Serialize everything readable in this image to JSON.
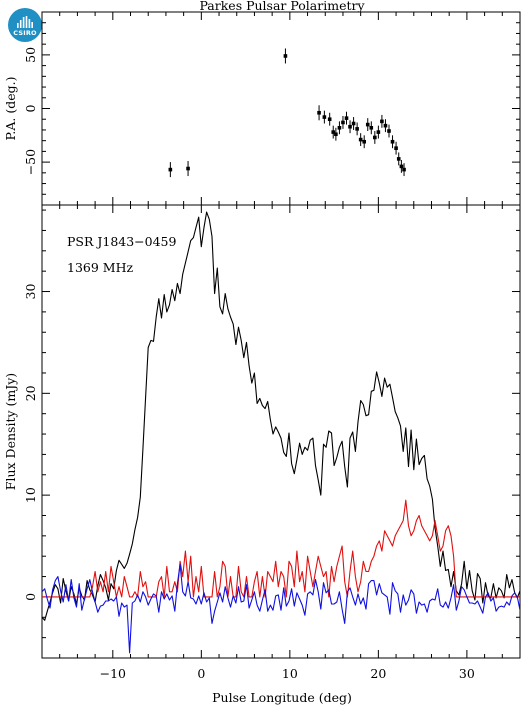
{
  "logo": {
    "text": "CSIRO",
    "color": "#1f8fc4"
  },
  "title": "Parkes Pulsar Polarimetry",
  "xlabel": "Pulse Longitude (deg)",
  "annotations": [
    "PSR J1843−0459",
    "1369 MHz"
  ],
  "chart_data": [
    {
      "type": "scatter",
      "title": "Parkes Pulsar Polarimetry",
      "ylabel": "P.A. (deg.)",
      "xlim": [
        -18,
        36
      ],
      "ylim": [
        -90,
        90
      ],
      "x_ticks": [
        -10,
        0,
        10,
        20,
        30
      ],
      "y_ticks": [
        -50,
        0,
        50
      ],
      "color": "#000000",
      "points": [
        {
          "x": -3.5,
          "y": -57,
          "err": 7
        },
        {
          "x": -1.5,
          "y": -56,
          "err": 7
        },
        {
          "x": 9.5,
          "y": 49,
          "err": 7
        },
        {
          "x": 13.3,
          "y": -4,
          "err": 7
        },
        {
          "x": 13.9,
          "y": -8,
          "err": 6
        },
        {
          "x": 14.5,
          "y": -10,
          "err": 6
        },
        {
          "x": 14.9,
          "y": -22,
          "err": 6
        },
        {
          "x": 15.2,
          "y": -24,
          "err": 6
        },
        {
          "x": 15.6,
          "y": -18,
          "err": 6
        },
        {
          "x": 16.0,
          "y": -13,
          "err": 6
        },
        {
          "x": 16.4,
          "y": -9,
          "err": 6
        },
        {
          "x": 16.8,
          "y": -17,
          "err": 6
        },
        {
          "x": 17.2,
          "y": -14,
          "err": 6
        },
        {
          "x": 17.6,
          "y": -19,
          "err": 6
        },
        {
          "x": 18.0,
          "y": -29,
          "err": 6
        },
        {
          "x": 18.4,
          "y": -31,
          "err": 6
        },
        {
          "x": 18.8,
          "y": -15,
          "err": 6
        },
        {
          "x": 19.2,
          "y": -18,
          "err": 6
        },
        {
          "x": 19.6,
          "y": -27,
          "err": 6
        },
        {
          "x": 20.0,
          "y": -22,
          "err": 6
        },
        {
          "x": 20.4,
          "y": -12,
          "err": 6
        },
        {
          "x": 20.8,
          "y": -16,
          "err": 6
        },
        {
          "x": 21.2,
          "y": -21,
          "err": 6
        },
        {
          "x": 21.6,
          "y": -31,
          "err": 6
        },
        {
          "x": 22.0,
          "y": -37,
          "err": 6
        },
        {
          "x": 22.3,
          "y": -47,
          "err": 6
        },
        {
          "x": 22.6,
          "y": -54,
          "err": 6
        },
        {
          "x": 22.9,
          "y": -57,
          "err": 6
        }
      ]
    },
    {
      "type": "line",
      "ylabel": "Flux Density (mJy)",
      "xlim": [
        -18,
        36
      ],
      "ylim": [
        -6,
        38.5
      ],
      "x_ticks": [
        -10,
        0,
        10,
        20,
        30
      ],
      "y_ticks": [
        0,
        10,
        20,
        30
      ],
      "step": 0.3,
      "series": [
        {
          "color": "#000000",
          "values": [
            -2,
            -2.3,
            -1.4,
            -0.5,
            0.4,
            1.2,
            0.8,
            -0.6,
            1.8,
            0.6,
            -0.4,
            1,
            0.3,
            -0.7,
            0.9,
            0.1,
            -0.3,
            1.6,
            0.7,
            0.2,
            -0.5,
            1.1,
            2.2,
            1.6,
            0.9,
            -0.3,
            1.3,
            0.8,
            2.6,
            3.6,
            3.2,
            2.8,
            3.3,
            4.2,
            5.2,
            6.6,
            7.8,
            9.8,
            14.5,
            19.6,
            24.5,
            25.2,
            25.1,
            27.5,
            29.3,
            27.4,
            29.7,
            28,
            28.7,
            30.2,
            29.1,
            30.8,
            29.8,
            31.7,
            32.8,
            33.9,
            35,
            35.3,
            36.3,
            37.3,
            34.4,
            36.3,
            37.8,
            37.1,
            35.4,
            29.8,
            32.3,
            28.5,
            27.8,
            29.8,
            28.3,
            27.5,
            26.8,
            24.8,
            26.5,
            25.2,
            23.5,
            25,
            22.7,
            21,
            22,
            19,
            19.5,
            18.8,
            18.5,
            19.2,
            17.4,
            16,
            16.7,
            16.2,
            15.6,
            14.2,
            13.8,
            16.1,
            13.1,
            12.1,
            13.5,
            15.1,
            14,
            14.7,
            14.4,
            15.4,
            15.6,
            12.9,
            11.5,
            10,
            15,
            14.7,
            16.3,
            16.1,
            12.9,
            13.7,
            14.7,
            15.3,
            12.8,
            10.8,
            15.6,
            16.2,
            14.3,
            17.2,
            19.3,
            18.9,
            17.8,
            17.9,
            20.2,
            20.3,
            22.1,
            21,
            19.7,
            21.5,
            20.6,
            20.9,
            19.6,
            18.2,
            17.6,
            16.8,
            14.3,
            16.6,
            12.8,
            16.4,
            12.5,
            15.5,
            13,
            13.6,
            13.9,
            11.6,
            10.9,
            9.6,
            6.8,
            5,
            3,
            4.5,
            2.6,
            2.7,
            1,
            2.5,
            0.6,
            0.2,
            1.3,
            3.5,
            0.8,
            2.6,
            0.6,
            -0.3,
            2.3,
            1.8,
            -0.6,
            1.4,
            0.1,
            -0.1,
            1.3,
            -0.1,
            0.9,
            0.6,
            -0.1,
            2.2,
            0.9,
            1.7,
            0.4,
            -0.1,
            0.6,
            -0.4,
            0.1
          ]
        },
        {
          "color": "#e01010",
          "values": [
            0,
            0,
            0,
            0,
            0,
            0,
            0,
            0,
            0,
            0,
            0,
            0,
            0,
            0,
            0,
            0,
            0,
            0,
            0,
            1,
            2.5,
            0.5,
            1.5,
            0.5,
            2.5,
            0.5,
            3,
            1.5,
            0,
            1,
            0,
            2,
            1,
            0,
            0,
            0.5,
            0,
            2.5,
            1,
            1.5,
            0,
            0,
            0,
            0,
            1.5,
            2,
            0,
            3,
            0.5,
            0.5,
            1.5,
            0.5,
            3.5,
            2,
            4.5,
            1.5,
            4,
            0,
            2,
            0.5,
            3,
            0,
            0,
            0,
            0,
            2.5,
            0,
            1,
            3.5,
            3,
            0,
            2,
            0,
            0,
            3,
            0.5,
            0,
            2,
            0,
            0,
            1.5,
            2.5,
            0,
            2,
            0,
            2.5,
            2,
            1.5,
            3.5,
            1,
            2.5,
            2,
            0,
            3.5,
            3,
            1,
            4.5,
            1.5,
            2.5,
            0.5,
            4,
            2.5,
            1,
            2.5,
            4,
            3,
            2,
            2.5,
            0,
            3,
            1.5,
            3,
            4,
            5,
            1.5,
            0,
            2.5,
            4.5,
            2,
            0.5,
            1.5,
            3.5,
            2.5,
            2.5,
            3.5,
            4,
            5,
            5.5,
            4.5,
            6.5,
            6,
            5.5,
            5,
            6,
            6.5,
            7,
            7.5,
            9.5,
            7,
            6,
            6.5,
            7.5,
            8,
            7,
            6.5,
            6,
            5.5,
            6,
            7.5,
            6,
            4.5,
            5,
            6.5,
            7,
            6,
            4,
            0,
            0,
            0,
            0,
            0,
            0,
            0,
            0,
            0,
            0,
            0,
            0,
            0,
            0,
            0,
            0,
            0,
            0,
            0,
            0,
            0,
            0,
            0,
            0,
            0,
            0,
            0,
            0,
            0,
            0
          ]
        },
        {
          "color": "#1010e0",
          "values": [
            0.5,
            0.8,
            -0.2,
            -1.1,
            0.7,
            1.6,
            2,
            0.6,
            -0.5,
            1.2,
            -0.4,
            1.7,
            -0.1,
            -1,
            1.3,
            -1.3,
            -0.2,
            0.8,
            1.7,
            0.5,
            -0.5,
            -1.5,
            -0.9,
            -0.8,
            -0.4,
            -0.4,
            -0.2,
            -0.4,
            0,
            -1.9,
            -0.6,
            -1,
            -0.8,
            -5.5,
            -0.6,
            -0.4,
            0.2,
            -0.5,
            0.5,
            0,
            -0.8,
            -0.2,
            0.3,
            0.1,
            -1.5,
            0.5,
            -0.2,
            0.3,
            -0.3,
            0.1,
            -1.4,
            1.3,
            3.2,
            0.5,
            0.1,
            1.5,
            -0.1,
            -0.2,
            -0.7,
            0.1,
            -0.7,
            0.4,
            -0.5,
            -0.1,
            -2.6,
            -1.4,
            -0.5,
            0.4,
            -0.5,
            1,
            -0.1,
            -1,
            0.1,
            -0.6,
            1,
            -0.5,
            -0.4,
            1.2,
            -1.1,
            -0.3,
            0.5,
            -0.8,
            -1.4,
            -0.3,
            0.7,
            -1.4,
            -0.8,
            -1.3,
            0.1,
            0.2,
            -1.3,
            0.9,
            -0.9,
            -0.4,
            0.8,
            -0.9,
            0.4,
            -0.2,
            -0.8,
            -1.8,
            0.3,
            0.5,
            0.2,
            1.7,
            0.5,
            -1.2,
            1.4,
            0.4,
            0.7,
            -0.7,
            -0.7,
            -0.5,
            0.5,
            -1.2,
            -2.6,
            0.5,
            0.9,
            0,
            -0.8,
            0.3,
            -0.7,
            -0.1,
            -1.2,
            1.3,
            1.6,
            1.6,
            0.2,
            1.3,
            0.4,
            0.2,
            0,
            -1.7,
            1.4,
            0.6,
            0.3,
            -1.5,
            0.2,
            -0.8,
            -0.3,
            0.7,
            0.3,
            -1.6,
            -0.5,
            -0.8,
            -0.7,
            -1.5,
            -0.4,
            -0.2,
            -0.3,
            0.8,
            -0.8,
            -1,
            -0.5,
            -1.1,
            -0.1,
            1.2,
            -1.3,
            -0.4,
            1,
            0.7,
            0,
            -0.6,
            -0.6,
            -0.7,
            -0.4,
            -1,
            -1.6,
            0,
            0.4,
            -0.4,
            -0.1,
            -1.4,
            -1,
            -0.9,
            -1,
            -0.5,
            -0.8,
            0.1,
            0.4,
            0,
            -1.3,
            -1.7,
            -0.3,
            -0.9,
            -0.4
          ]
        }
      ]
    }
  ]
}
